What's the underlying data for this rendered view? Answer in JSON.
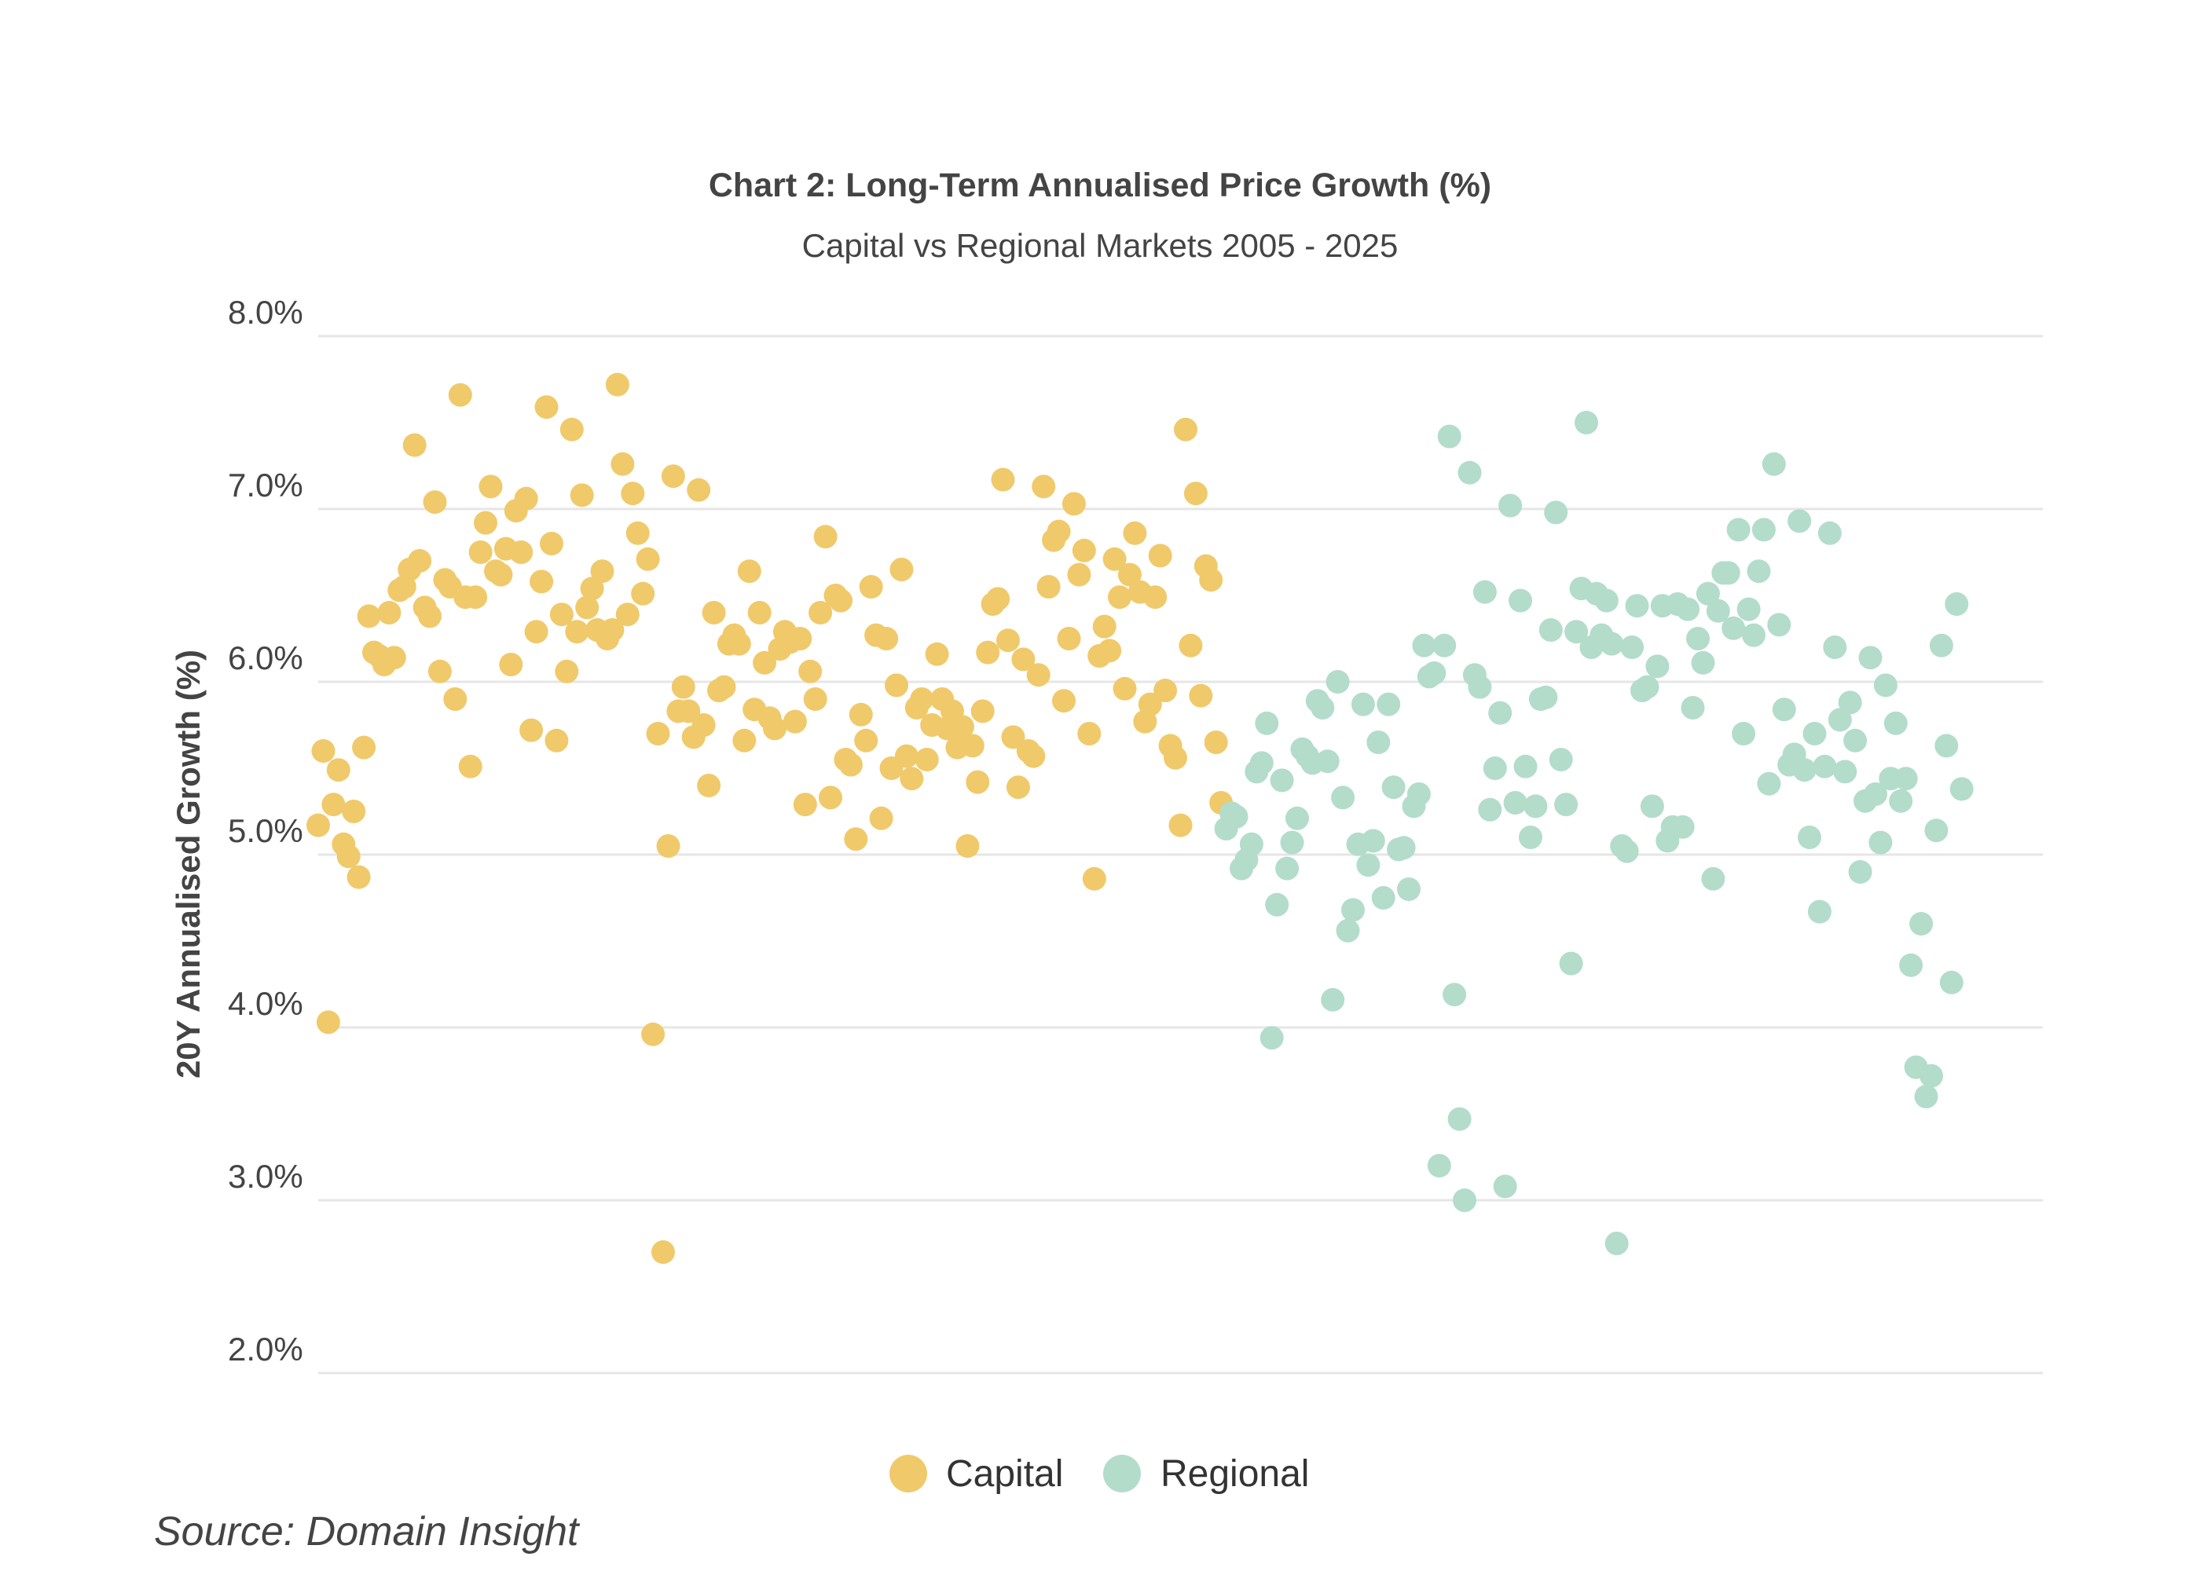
{
  "chart_data": {
    "type": "scatter",
    "title": "Chart 2: Long-Term Annualised Price Growth (%)",
    "subtitle": "Capital vs Regional Markets 2005 - 2025",
    "xlabel": "",
    "ylabel": "20Y Annualised Growth (%)",
    "ylim": [
      2.0,
      8.0
    ],
    "yticks": [
      "2.0%",
      "3.0%",
      "4.0%",
      "5.0%",
      "6.0%",
      "7.0%",
      "8.0%"
    ],
    "xlim": [
      0,
      340
    ],
    "grid": true,
    "legend_position": "bottom-center",
    "series": [
      {
        "name": "Capital",
        "color": "#f0c96a",
        "values": [
          5.17,
          5.6,
          4.03,
          5.29,
          5.49,
          5.06,
          4.99,
          5.25,
          4.87,
          5.62,
          6.38,
          6.17,
          6.15,
          6.1,
          6.4,
          6.14,
          6.53,
          6.55,
          6.65,
          7.37,
          6.7,
          6.43,
          6.38,
          7.04,
          6.06,
          6.59,
          6.55,
          5.9,
          7.66,
          6.49,
          5.51,
          6.49,
          6.75,
          6.92,
          7.13,
          6.64,
          6.62,
          6.77,
          6.1,
          6.99,
          6.75,
          7.06,
          5.72,
          6.29,
          6.58,
          7.59,
          6.8,
          5.66,
          6.39,
          6.06,
          7.46,
          6.29,
          7.08,
          6.43,
          6.54,
          6.3,
          6.64,
          6.25,
          6.3,
          7.72,
          7.26,
          6.39,
          7.09,
          6.86,
          6.51,
          6.71,
          3.96,
          5.7,
          2.7,
          5.05,
          7.19,
          5.83,
          5.97,
          5.83,
          5.68,
          7.11,
          5.75,
          5.4,
          6.4,
          5.95,
          5.97,
          6.22,
          6.27,
          6.22,
          5.66,
          6.64,
          5.84,
          6.4,
          6.11,
          5.79,
          5.73,
          6.19,
          6.29,
          6.23,
          5.77,
          6.25,
          5.29,
          6.06,
          5.9,
          6.4,
          6.84,
          5.33,
          6.5,
          6.47,
          5.55,
          5.52,
          5.09,
          5.81,
          5.66,
          6.55,
          6.27,
          5.21,
          6.25,
          5.5,
          5.98,
          6.65,
          5.57,
          5.44,
          5.85,
          5.9,
          5.55,
          5.75,
          6.16,
          5.9,
          5.73,
          5.83,
          5.62,
          5.74,
          5.05,
          5.63,
          5.42,
          5.83,
          6.17,
          6.45,
          6.48,
          7.17,
          6.24,
          5.68,
          5.39,
          6.13,
          5.6,
          5.57,
          6.04,
          7.13,
          6.55,
          6.82,
          6.87,
          5.89,
          6.25,
          7.03,
          6.62,
          6.76,
          5.7,
          4.86,
          6.15,
          6.32,
          6.18,
          6.71,
          6.49,
          5.96,
          6.62,
          6.86,
          6.52,
          5.77,
          5.87,
          6.49,
          6.73,
          5.95,
          5.63,
          5.56,
          5.17,
          7.46,
          6.21,
          7.09,
          5.92,
          6.67,
          6.59,
          5.65,
          5.3
        ]
      },
      {
        "name": "Regional",
        "color": "#b3dccb",
        "values": [
          5.15,
          5.24,
          5.22,
          4.92,
          4.97,
          5.06,
          5.48,
          5.53,
          5.76,
          3.94,
          4.71,
          5.43,
          4.92,
          5.07,
          5.21,
          5.61,
          5.57,
          5.53,
          5.89,
          5.85,
          5.54,
          4.16,
          6.0,
          5.33,
          4.56,
          4.68,
          5.06,
          5.87,
          4.94,
          5.08,
          5.65,
          4.75,
          5.87,
          5.39,
          5.03,
          5.04,
          4.8,
          5.28,
          5.35,
          6.21,
          6.03,
          6.05,
          3.2,
          6.21,
          7.42,
          4.19,
          3.47,
          3.0,
          7.21,
          6.04,
          5.97,
          6.52,
          5.26,
          5.5,
          5.82,
          3.08,
          7.02,
          5.3,
          6.47,
          5.51,
          5.1,
          5.28,
          5.9,
          5.91,
          6.3,
          6.98,
          5.55,
          5.29,
          4.37,
          6.29,
          6.54,
          7.5,
          6.2,
          6.51,
          6.27,
          6.47,
          6.22,
          2.75,
          5.05,
          5.02,
          6.2,
          6.44,
          5.95,
          5.97,
          5.28,
          6.09,
          6.44,
          5.08,
          5.16,
          6.45,
          5.16,
          6.42,
          5.85,
          6.25,
          6.11,
          6.51,
          4.86,
          6.41,
          6.63,
          6.63,
          6.31,
          6.88,
          5.7,
          6.42,
          6.27,
          6.64,
          6.88,
          5.41,
          7.26,
          6.33,
          5.84,
          5.52,
          5.58,
          6.93,
          5.49,
          5.1,
          5.7,
          4.67,
          5.51,
          6.86,
          6.2,
          5.78,
          5.48,
          5.88,
          5.66,
          4.9,
          5.31,
          6.14,
          5.35,
          5.07,
          5.98,
          5.44,
          5.76,
          5.31,
          5.44,
          4.36,
          3.77,
          4.6,
          3.6,
          3.72,
          5.14,
          6.21,
          5.63,
          4.26,
          6.45,
          5.38
        ]
      }
    ]
  },
  "legend": {
    "items": [
      "Capital",
      "Regional"
    ]
  },
  "source": "Source: Domain Insight"
}
